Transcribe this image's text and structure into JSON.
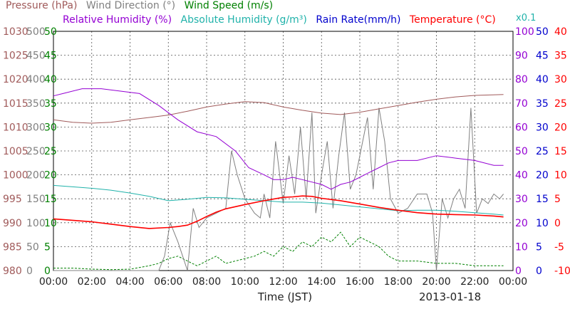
{
  "chart_data": {
    "type": "line",
    "date": "2013-01-18",
    "xlabel": "Time (JST)",
    "x_ticks": [
      "00:00",
      "02:00",
      "04:00",
      "06:00",
      "08:00",
      "10:00",
      "12:00",
      "14:00",
      "16:00",
      "18:00",
      "20:00",
      "22:00",
      "00:00"
    ],
    "x_range_hours": [
      0,
      24
    ],
    "grid": true,
    "axes": [
      {
        "name": "Pressure (hPa)",
        "side": "left",
        "color": "#a05a5a",
        "min": 980,
        "max": 1030,
        "ticks": [
          980,
          985,
          990,
          995,
          1000,
          1005,
          1010,
          1015,
          1020,
          1025,
          1030
        ]
      },
      {
        "name": "Wind Direction (°)",
        "side": "left",
        "color": "#808080",
        "min": 0,
        "max": 500,
        "ticks": [
          0,
          50,
          100,
          150,
          200,
          250,
          300,
          350,
          400,
          450,
          500
        ]
      },
      {
        "name": "Wind Speed (m/s)",
        "side": "left",
        "color": "#008000",
        "min": 0,
        "max": 50,
        "ticks": [
          0,
          5,
          10,
          15,
          20,
          25,
          30,
          35,
          40,
          45,
          50
        ]
      },
      {
        "name": "Relative Humidity (%)",
        "side": "right",
        "color": "#9400d3",
        "min": 0,
        "max": 100,
        "ticks": [
          0,
          10,
          20,
          30,
          40,
          50,
          60,
          70,
          80,
          90,
          100
        ]
      },
      {
        "name": "Absolute Humidity (g/m3)",
        "side": "right",
        "color": "#20b2aa",
        "min": 0,
        "max": 50,
        "ticks": [
          0,
          5,
          10,
          15,
          20,
          25,
          30,
          35,
          40,
          45,
          50
        ]
      },
      {
        "name": "Rain Rate(mm/h)",
        "side": "right",
        "color": "#0000cd",
        "min": 0,
        "max": 50,
        "ticks": [
          0,
          5,
          10,
          15,
          20,
          25,
          30,
          35,
          40,
          45,
          50
        ],
        "note": "x0.1"
      },
      {
        "name": "Temperature (°C)",
        "side": "right",
        "color": "#ff0000",
        "min": -10,
        "max": 40,
        "ticks": [
          -10,
          -5,
          0,
          5,
          10,
          15,
          20,
          25,
          30,
          35,
          40
        ]
      }
    ],
    "series": [
      {
        "name": "Pressure (hPa)",
        "color": "#a05a5a",
        "x": [
          0,
          1,
          2,
          3,
          4,
          5,
          6,
          7,
          8,
          9,
          10,
          11,
          12,
          13,
          14,
          15,
          16,
          17,
          18,
          19,
          20,
          21,
          22,
          23.5
        ],
        "y": [
          1011.5,
          1011,
          1010.8,
          1011,
          1011.5,
          1012,
          1012.5,
          1013.3,
          1014.2,
          1014.8,
          1015.3,
          1015.1,
          1014.2,
          1013.5,
          1012.9,
          1012.6,
          1013.1,
          1013.8,
          1014.5,
          1015.2,
          1015.8,
          1016.3,
          1016.6,
          1016.8
        ]
      },
      {
        "name": "Relative Humidity (%)",
        "color": "#9400d3",
        "x": [
          0,
          0.5,
          1.5,
          2.5,
          3.5,
          4.5,
          5.5,
          6.5,
          7.5,
          8.5,
          9.5,
          10.2,
          11,
          11.5,
          12,
          12.5,
          13,
          13.5,
          14,
          14.5,
          15,
          15.5,
          16,
          16.5,
          17,
          17.5,
          18,
          19,
          20,
          21,
          22,
          23,
          23.5
        ],
        "y": [
          73,
          74,
          76,
          76,
          75,
          74,
          69,
          63,
          58,
          56,
          50,
          43,
          40,
          38,
          38,
          39,
          38,
          37,
          36,
          34,
          36,
          37,
          39,
          41,
          43,
          45,
          46,
          46,
          48,
          47,
          46,
          44,
          44
        ]
      },
      {
        "name": "Absolute Humidity (g/m3)",
        "color": "#20b2aa",
        "x": [
          0,
          1,
          2,
          3,
          4,
          5,
          6,
          7,
          8,
          9,
          10,
          11,
          12,
          13,
          14,
          15,
          16,
          17,
          18,
          19,
          20,
          21,
          22,
          23,
          23.5
        ],
        "y": [
          17.8,
          17.5,
          17.2,
          16.8,
          16.2,
          15.5,
          14.6,
          14.9,
          15.3,
          15.2,
          14.9,
          14.6,
          14.3,
          14.3,
          14.1,
          13.7,
          13.3,
          12.9,
          12.5,
          12.6,
          12.6,
          12.4,
          12.1,
          11.8,
          11.6
        ]
      },
      {
        "name": "Temperature (°C)",
        "color": "#ff0000",
        "x": [
          0,
          1,
          2,
          3,
          4,
          5,
          6,
          6.5,
          7,
          7.5,
          8,
          8.5,
          9,
          10,
          11,
          12,
          12.5,
          13,
          13.5,
          14,
          15,
          16,
          17,
          18,
          19,
          20,
          21,
          22,
          23,
          23.5
        ],
        "y": [
          0.8,
          0.5,
          0.2,
          -0.3,
          -0.8,
          -1.2,
          -1.0,
          -0.8,
          -0.5,
          0.3,
          1.3,
          2.2,
          2.9,
          3.8,
          4.6,
          5.3,
          5.4,
          5.6,
          5.5,
          5.1,
          4.6,
          3.9,
          3.2,
          2.6,
          2.1,
          1.8,
          1.7,
          1.6,
          1.4,
          1.2
        ]
      },
      {
        "name": "Wind Direction (°)",
        "color": "#808080",
        "x": [
          0,
          5.5,
          5.8,
          6.1,
          6.5,
          7.0,
          7.3,
          7.6,
          8.0,
          8.5,
          9.0,
          9.3,
          9.6,
          10.0,
          10.5,
          10.8,
          11.0,
          11.3,
          11.6,
          12.0,
          12.3,
          12.6,
          12.9,
          13.2,
          13.5,
          13.7,
          14.0,
          14.3,
          14.6,
          14.9,
          15.2,
          15.5,
          15.8,
          16.1,
          16.4,
          16.7,
          17.0,
          17.3,
          17.6,
          18.0,
          18.5,
          19.0,
          19.5,
          19.8,
          20.0,
          20.3,
          20.6,
          20.9,
          21.2,
          21.5,
          21.8,
          22.1,
          22.4,
          22.7,
          23.0,
          23.3,
          23.5
        ],
        "y": [
          0,
          0,
          30,
          100,
          60,
          0,
          130,
          90,
          110,
          120,
          130,
          250,
          200,
          150,
          120,
          110,
          160,
          110,
          270,
          140,
          240,
          160,
          300,
          150,
          330,
          120,
          200,
          270,
          130,
          240,
          330,
          170,
          200,
          260,
          320,
          170,
          340,
          270,
          150,
          120,
          130,
          160,
          160,
          120,
          0,
          150,
          110,
          150,
          170,
          130,
          340,
          120,
          150,
          140,
          160,
          150,
          160
        ]
      },
      {
        "name": "Wind Speed (m/s)",
        "color": "#008000",
        "x": [
          0,
          1,
          2,
          3,
          4,
          5,
          5.5,
          6,
          6.5,
          7,
          7.5,
          8,
          8.5,
          9,
          9.5,
          10,
          10.5,
          11,
          11.5,
          12,
          12.5,
          13,
          13.5,
          14,
          14.5,
          15,
          15.5,
          16,
          16.5,
          17,
          17.5,
          18,
          19,
          20,
          21,
          22,
          23,
          23.5
        ],
        "y": [
          0.5,
          0.5,
          0.3,
          0.2,
          0.3,
          1,
          1.5,
          2.5,
          3,
          2,
          1,
          2,
          3,
          1.5,
          2,
          2.5,
          3,
          4,
          3,
          5,
          4,
          6,
          5,
          7,
          6,
          8,
          5,
          7,
          6,
          5,
          3,
          2,
          2,
          1.5,
          1.5,
          1,
          1,
          1
        ]
      }
    ],
    "rain_rate": 0
  },
  "legend": {
    "row1": [
      {
        "text": "Pressure (hPa)",
        "color": "#a05a5a"
      },
      {
        "text": "Wind Direction (°)",
        "color": "#808080"
      },
      {
        "text": "Wind Speed (m/s)",
        "color": "#008000"
      }
    ],
    "row2": [
      {
        "text": "Relative Humidity (%)",
        "color": "#9400d3"
      },
      {
        "text": "Absolute Humidity (g/m³)",
        "color": "#20b2aa"
      },
      {
        "text": "Rain Rate(mm/h)",
        "color": "#0000cd"
      },
      {
        "text": "Temperature (°C)",
        "color": "#ff0000"
      }
    ],
    "rain_scale_note": "x0.1",
    "rain_scale_color": "#20b2aa"
  }
}
